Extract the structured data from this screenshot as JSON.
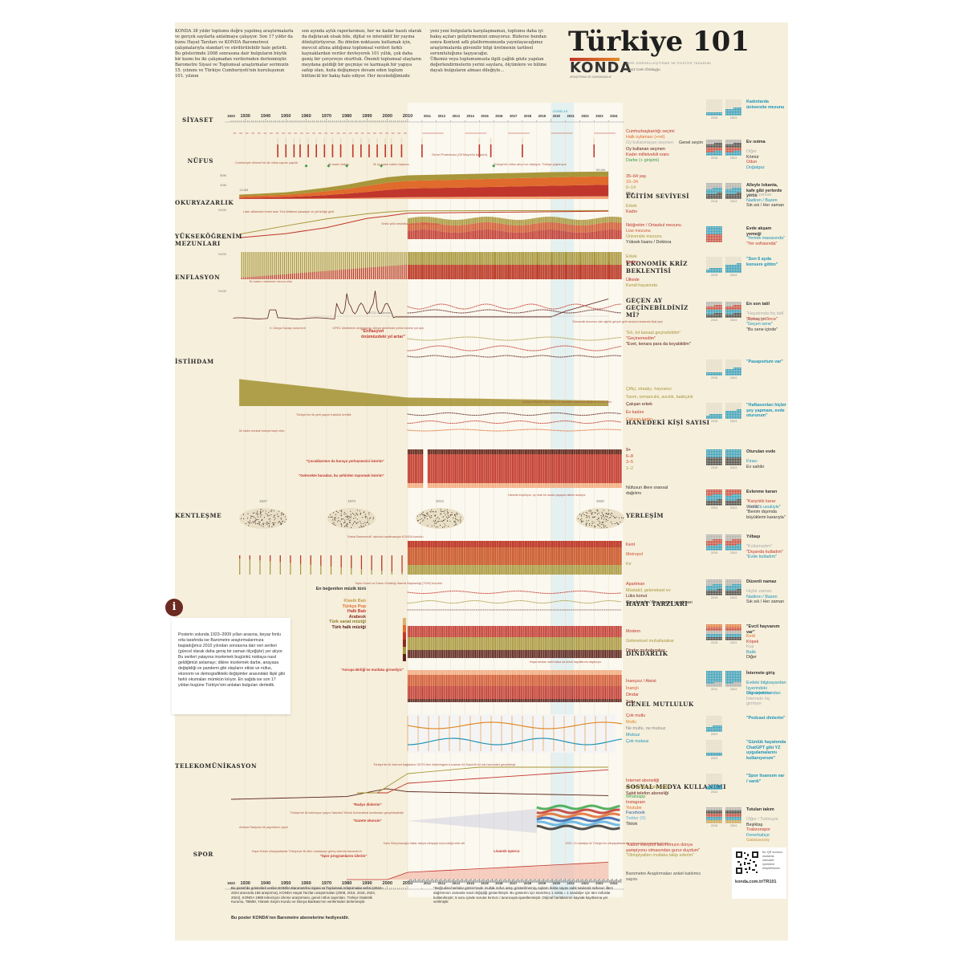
{
  "header": {
    "title": "Türkiye 101",
    "logo": "KONDA",
    "logo_sub": "ARAŞTIRMA VE DANIŞMANLIK",
    "credit_line1": "VERİ GÖRSELLEŞTİRME VE POSTER TASARIMI",
    "credit_line2": "Deniz Cem Önduygu"
  },
  "intro": {
    "col1": "KONDA 38 yıldır toplumu doğru yapılmış araştırmalarla ve gerçek sayılarla anlatmaya çalışıyor. Son 17 yıldır da bunu Hayat Tarzları ve KONDA Barometresi çalışmalarıyla standart ve sürdürülebilir hale getirdi. Bu gösterimde 2008 sonrasına dair bulguların büyük bir kısmı bu iki çalışmadan verilerinden derlenmiştir.\nBarometre Siyasi ve Toplumsal araştırmalar serimizin 15. yılınını ve Türkiye Cumhuriyeti'nin kuruluşunun 101. yılının",
    "col2": "son ayında aylık raporlarımızı, her ne kadar basılı olarak da dağıtacak olsak bile, dijital ve interaktif bir yayına dönüştürüyoruz. Bu dönüm noktasını kutlamak için, mevcut altına aldığımız toplumsal verileri farklı kaynaklardan veriler devleyerek 101 yıllık, çok daha geniş bir çerçeveye oturttuk. Önemli toplumsal olayların meydana geldiği bir geçmişe ve karmaşık bir yapıya sahip olan, hızla değişmeye devam eden toplum bütüncül bir bakış hale ediyor. Her incelediğimizde",
    "col3": "yeni yeni bulgularla karşılaşmamızı, toplumu daha iyi bakış açıları geliştirmemizi umuyoruz. Bizlerse bundan sonra Kontent adlı platformumuzda yayınlayacağımız araştırmalarda güvenilir bilgi üretmenin taribsel sorumluluğunu taşıyacağız.\nÜlkemiz veya toplumumuzla ilgili çağlık gözle yapılan değerlendirmelerin yerini sayılara, ölçümlere ve bilime dayalı bulguların alması dileğiyle..."
  },
  "years": {
    "top_axis": [
      "1923",
      "1930",
      "1940",
      "1950",
      "1960",
      "1970",
      "1980",
      "1990",
      "2000",
      "2010",
      "2011",
      "2012",
      "2013",
      "2014",
      "2015",
      "2016",
      "2017",
      "2018",
      "2019",
      "2020",
      "2021",
      "2022",
      "2023",
      "2024"
    ],
    "covid_label": "COVID-19"
  },
  "sections": {
    "siyaset": "SİYASET",
    "nufus": "NÜFUS",
    "okuryazarlik": "OKURYAZARLIK",
    "yuksekogrenim": "YÜKSEKÖĞRENİM MEZUNLARI",
    "enflasyon": "ENFLASYON",
    "istihdam": "İSTİHDAM",
    "kentlesme": "KENTLEŞME",
    "telekom": "TELEKOMÜNİKASYON",
    "spor": "SPOR"
  },
  "right_sections": {
    "egitim": "EĞİTİM SEVİYESİ",
    "ekonomik_kriz": "EKONOMİK KRİZ BEKLENTİSİ",
    "gecen_ay": "GEÇEN AY GEÇİNEBİLDİNİZ Mİ?",
    "hanedeki": "HANEDEKİ KİŞİ SAYISI",
    "yerlesim": "YERLEŞİM",
    "hayat_tarzlari": "HAYAT TARZLARI",
    "dindarlik": "DİNDARLIK",
    "genel_mutluluk": "GENEL MUTLULUK",
    "sosyal_medya": "SOSYAL MEDYA KULLANIMI"
  },
  "legend": {
    "siyaset": [
      "Cumhurbaşkanlığı seçimi",
      "Halk oylaması (+ret)",
      "Oy kullanmayan seçmen",
      "Oy kullanan seçmen",
      "Kadın milletvekili oranı",
      "Darbe (+ girişimi)"
    ],
    "genel_secim": "Genel seçim",
    "nufus": [
      "35–64 yaş",
      "15–34",
      "0–14",
      "65+"
    ],
    "okuryazarlik": [
      "Erkek",
      "Kadın"
    ],
    "egitim": [
      "İlköğretim / Ortaokul mezunu",
      "Lise mezunu",
      "Üniversite mezunu",
      "Yüksek lisans / Doktora"
    ],
    "yuksekogrenim": [
      "Erkek",
      "Kadın"
    ],
    "ekonomik_kriz": [
      "Ülkede",
      "Kendi hayatında"
    ],
    "gecen_ay": [
      "\"Eh, kıt kanaat geçinebildim\"",
      "\"Geçinemedim\"",
      "\"Evet, kenara para da koyabildim\""
    ],
    "istihdam": [
      "Çiftçi, ziraatçı, hayvancı",
      "Tarım, ormancılık, avcılık, balıkçılık",
      "Çalışan erkek",
      "Ev kadını",
      "Çalışan kadın"
    ],
    "hanedeki": [
      "9+",
      "6–8",
      "3–5",
      "1–2"
    ],
    "nufusun_iller": "Nüfusun illere oransal dağılımı",
    "yerlesim": [
      "Kent",
      "Metropol",
      "Kır"
    ],
    "konut": [
      "Apartman",
      "Müstakil, geleneksel ev",
      "Lüks konut",
      "Gecekondu / Dış sıvasız apartman"
    ],
    "muzik_title": "En beğenilen müzik türü",
    "muzik": [
      "Klasik Batı",
      "Türkçe Pop",
      "Halk Batı",
      "Arabesk",
      "Türk sanat müziği",
      "Türk halk müziği"
    ],
    "hayat": [
      "Modern",
      "Geleneksel muhafazakar",
      "Dindar muhafazakar"
    ],
    "dindarlik": [
      "İnançsız / Ateist",
      "İnançlı",
      "Dindar",
      "Sofu"
    ],
    "mutluluk": [
      "Çok mutlu",
      "Mutlu",
      "Ne mutlu, ne mutsuz",
      "Mutsuz",
      "Çok mutsuz"
    ],
    "telekom": [
      "İnternet aboneliği",
      "Cep telefonu aboneliği",
      "Sabit telefon aboneliği"
    ],
    "sosyal": [
      "Whatsapp",
      "Instagram",
      "Youtube",
      "Facebook",
      "Twitter (X)",
      "Tiktok"
    ],
    "spor": [
      "\"Kadın voleybol takımımızın dünya şampiyonu olmasından gurur duydum\"",
      "\"Olimpiyatları mutlaka takip ederim\""
    ],
    "barometre": "Barometre Araştırmaları anket katılımcı sayısı"
  },
  "quotes": {
    "enflasyon": "\"Enflasyon önümüzdeki yıl artar\"",
    "cocuk": "\"Çocuklarımın da buraya yerleşmesini isterim\"",
    "gelecek": "\"Gelecekte buradan, bu şehirden taşınmak isterim\"",
    "ab": "\"Avrupa Birliği'ne mutlaka girmeliyiz\"",
    "radyo": "\"Radyo dinlerim\"",
    "gazete": "\"Gazete okurum\"",
    "spor_prog": "\"Spor programlarını izlerim\"",
    "lisansli": "Lisanslı sporcu"
  },
  "annotations": {
    "a1": "Cumhuriyet dönemi'nin ilk nüfus sayımı yapıldı",
    "a2": "İlk kadın bakan",
    "a3": "İlk üç kadın hakim başkanı",
    "a4": "Türkiye'de nüfus artış hızı düşüyor; Türkiye yaşlanıyor",
    "a5": "Latin alfabesini temel alan Türk Alfabesi yasalaştı ve yürürlüğe girdi",
    "a6": "Sekiz yıllık kesintisiz zorunlu eğitime geçildi",
    "a7": "Ev kadını mahende mezun oldu",
    "a8": "II. Dünya Savaşı sona erdi",
    "a9": "OPEC ülkelerinin ambargosu dünya genelinde petrol krizine yol açtı",
    "a10": "OECD Ortalaması",
    "a11": "Ekonomik durumun dair ağırlık gerçek gelir seviyesi arasında ilişki şeyi",
    "a12": "Türkiye'nin ilk yerli yapım traktörü üretildi",
    "a13": "İlk kadın avukat baroya kayıt oldu",
    "a14": "Çalışma durumu ayrıntıları ve kısıntıları toplumda nikâh ve kruvik iken",
    "a15": "Hanede küçülüyor, üç nesil bir arada yaşayan aileler azalıyor",
    "a16": "\"Kanal Barometrik\" adında kısaltmasıyla KONDA kuruldu",
    "a17": "Toplu Konut ve Kamu Ortaklığı İdaresi Başkanlığı (TOKİ) kuruldu",
    "a18": "Hayat tarzları sabit kalsa da kendi hayatlarına dayanıyor",
    "a19": "Türkiye'de ilk internet bağlantısı ODTÜ'den Washington'a uzanan 64 Kbps'lik bir hat üzerinden gerçekleşti",
    "a20": "Ankara Radyosu ilk yayınlarını yaptı",
    "a21": "Türkiye'de ilk televizyon yayını İstanbul Teknik Üniversitesi tarafından gerçekleştirildi",
    "a22": "Yaşar Erkan olimpiyatlarda Türkiye'ye ilk altın madalyayı güreş dalında kazandırdı",
    "a23": "Kalın Süleymanoğlu haltar dalıyla olimpiyat üçüncülüğü elde etti",
    "a24": "2020, 13 madalya ile Türkiye'nin olimpiyatlarda en çok madalya kazandığı yıl oldu",
    "a25": "Genel Protestosu (28 Mayıs'ta başladı)"
  },
  "maps": [
    "1927",
    "1973",
    "2013",
    "2020"
  ],
  "info_box": {
    "icon": "i",
    "text": "Posterin solunda 1923–2009 yılları arasına, beyaz fonlu orta tarafında ise Barometre araştırmalarımıza başladığımız 2010 yılından sonrasına dair veri serileri (güncel olarak daha geniş bir zaman ölçeğiyle) yer alıyor. Bu serileri yatayına incelemek bugünkü noktaya nasıl geldiğimizi anlamayı; dikine incelemek darbe, anayasa değişikliği ve pandemi gibi olayların etkisi ve nüfus, ekonomi ve demografikteki değişimler arasındaki ilişki gibi farklı okumaları mümkün kılıyor. En sağda ise son 17 yıldan bugüne Türkiye'sini anlatan bulguları derledik."
  },
  "right_panel": [
    {
      "title": "Kadınlarda üniversite mezunu",
      "years": [
        "2015",
        "2024"
      ]
    },
    {
      "title": "Ev ısıtma",
      "items": [
        "Diğer",
        "Kömür",
        "Odun",
        "Doğalgaz"
      ],
      "years": [
        "2018",
        "2024"
      ]
    },
    {
      "title": "Alleyle lokanta, kafe gibi yerlerde yeme",
      "items": [
        "Hiçbir zaman",
        "Nadiren / Bazen",
        "Sık sık / Her zaman"
      ],
      "years": [
        "2018",
        "2024"
      ]
    },
    {
      "title": "Evde akşam yemeği",
      "items": [
        "\"Yemek masasında\"",
        "\"Yer sofrasında\""
      ]
    },
    {
      "title": "\"Son 6 ayda konsere gittim\"",
      "years": [
        "2015",
        "2024"
      ]
    },
    {
      "title": "En son tatil",
      "items": [
        "\"Hayatımda hiç tatil yapmadım\"",
        "\"Birkaç yıl önce\"",
        "\"Geçen sene\"",
        "\"Bu sene içinde\""
      ],
      "years": [
        "2015",
        "2024"
      ]
    },
    {
      "title": "\"Pasaportum var\"",
      "years": [
        "2015",
        "2024"
      ]
    },
    {
      "title": "\"Haftasonları hiçbir şey yapmam, evde otururum\"",
      "years": [
        "2015",
        "2024"
      ]
    },
    {
      "title": "Oturulan evde",
      "items": [
        "Kiracı",
        "Ev sahibi"
      ],
      "years": [
        "2015",
        "2024"
      ]
    },
    {
      "title": "Evlenme kararı",
      "items": [
        "\"Karşılıklı karar verdik\"",
        "\"Görücü usulüyle\"",
        "\"Benim dışımda büyüklerin kararıyla\""
      ],
      "years": [
        "2003",
        "2024"
      ]
    },
    {
      "title": "Yılbaşı",
      "items": [
        "\"Kutlamadım\"",
        "\"Dışarıda kutladım\"",
        "\"Evde kutladım\""
      ],
      "years": [
        "2015",
        "2024"
      ]
    },
    {
      "title": "Düzenli namaz",
      "items": [
        "Hiçbir zaman",
        "Nadiren / Bazen",
        "Sık sık / Her zaman"
      ],
      "years": [
        "2015",
        "2024"
      ]
    },
    {
      "title": "\"Evcil hayvanım var\"",
      "items": [
        "Kedi",
        "Köpek",
        "Kuş",
        "Balık",
        "Diğer"
      ],
      "years": [
        "2015",
        "2024"
      ]
    },
    {
      "title": "İnternete giriş",
      "items": [
        "Evdeki bilgisayardan",
        "İşyerindeki bilgisayardan",
        "Cep telefonundan",
        "İnternete hiç girmiyor"
      ],
      "years": [
        "2011",
        "2024"
      ]
    },
    {
      "title": "\"Podcast dinlerim\"",
      "years": [
        "2024"
      ]
    },
    {
      "title": "\"Günlük hayatımda ChatGPT gibi YZ uygulamalarını kullanıyorum\"",
      "years": [
        "2024"
      ]
    },
    {
      "title": "\"Spor lisansım var / vardı\"",
      "years": [
        "2024"
      ]
    },
    {
      "title": "Tutulan takım",
      "items": [
        "Diğer / Tutmuyor",
        "Beşiktaş",
        "Trabzonspor",
        "Fenerbahçe",
        "Galatasaray"
      ],
      "years": [
        "2015",
        "2024"
      ]
    }
  ],
  "footer": {
    "note1": "Bu posterde gösterilen veriler KONDA Barometresi Siyasi ve Toplumsal Araştırmalar serisi (2010–2024 arasında 158 araştırma), KONDA Hayat Tarzları araştırmaları (2008, 2015, 2018, 2022, 2024), KONDA 1988 televizyon izleme araştırması, genel nüfus sayımları, Türkiye İstatistik Kurumu, TBMM, Yüksek Seçim Kurulu ve Dünya Bankası'nın verilerinden derlenmiştir.",
    "note2": "*Doğrudan haritalar göstermede mutlak nüfus artışı gösterilmemiş, toplam nokta sayısı sabit tutularak nüfusun illere dağılımının zamanla nasıl değiştiği gösterilmiştir. Bu gösterim için tanıtılmış 1 nokta = 1 sandalye için tüm nüfuslar kullanılmıştır; 5 soru içinde sorulur kırmızı / turuncuyla işaretlenmiştir. Orijinal haritalarının kaynak kayıtlarına yer verilmiştir.",
    "subscriber": "Bu poster KONDA'nın Barometre abonelerine hediyesidir.",
    "qr_text": "Bu QR kodunu okutarak interaktif içeriklere erişebilirsiniz.",
    "url": "konda.com.tr/TR101"
  }
}
